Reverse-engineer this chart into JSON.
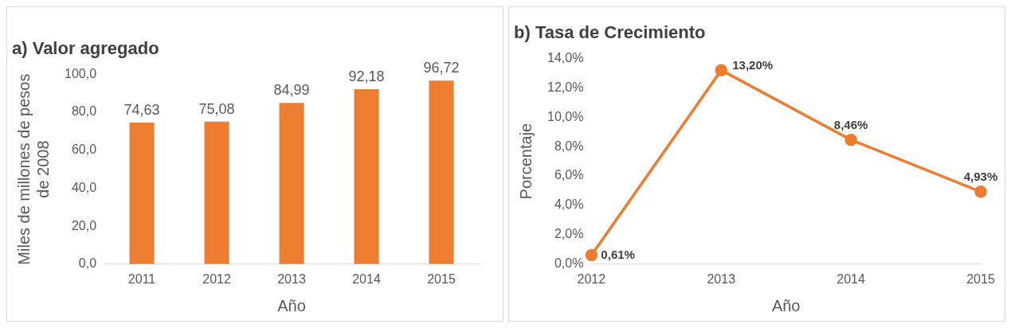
{
  "chart_data": [
    {
      "type": "bar",
      "title": "a) Valor agregado",
      "xlabel": "Año",
      "ylabel": "Miles de millones de pesos de 2008",
      "categories": [
        "2011",
        "2012",
        "2013",
        "2014",
        "2015"
      ],
      "values": [
        74.63,
        75.08,
        84.99,
        92.18,
        96.72
      ],
      "color": "#ed7d31",
      "value_labels": [
        "74,63",
        "75,08",
        "84,99",
        "92,18",
        "96,72"
      ],
      "ylim": [
        0,
        100
      ],
      "yticks": [
        {
          "value": 0,
          "label": "0,0"
        },
        {
          "value": 20,
          "label": "20,0"
        },
        {
          "value": 40,
          "label": "40,0"
        },
        {
          "value": 60,
          "label": "60,0"
        },
        {
          "value": 80,
          "label": "80,0"
        },
        {
          "value": 100,
          "label": "100,0"
        }
      ]
    },
    {
      "type": "line",
      "title": "b) Tasa de Crecimiento",
      "xlabel": "Año",
      "ylabel": "Porcentaje",
      "categories": [
        "2012",
        "2013",
        "2014",
        "2015"
      ],
      "values": [
        0.61,
        13.2,
        8.46,
        4.93
      ],
      "color": "#ed7d31",
      "marker": "circle",
      "value_labels": [
        "0,61%",
        "13,20%",
        "8,46%",
        "4,93%"
      ],
      "ylim": [
        0,
        14
      ],
      "yticks": [
        {
          "value": 0,
          "label": "0,0%"
        },
        {
          "value": 2,
          "label": "2,0%"
        },
        {
          "value": 4,
          "label": "4,0%"
        },
        {
          "value": 6,
          "label": "6,0%"
        },
        {
          "value": 8,
          "label": "8,0%"
        },
        {
          "value": 10,
          "label": "10,0%"
        },
        {
          "value": 12,
          "label": "12,0%"
        },
        {
          "value": 14,
          "label": "14,0%"
        }
      ]
    }
  ]
}
